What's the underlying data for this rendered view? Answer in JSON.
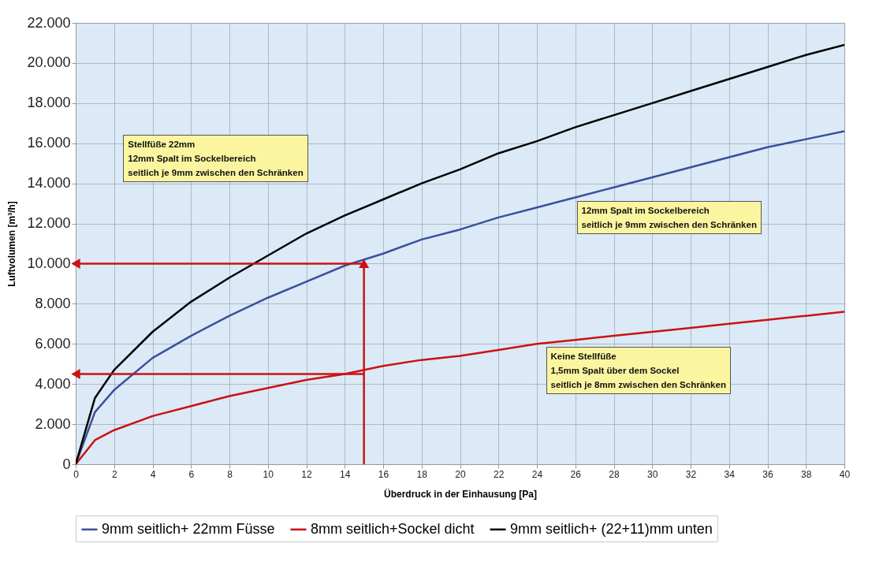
{
  "chart_data": {
    "type": "line",
    "xlabel": "Überdruck in der Einhausung [Pa]",
    "ylabel": "Luftvolumen [m³/h]",
    "x": [
      0,
      1,
      2,
      4,
      6,
      8,
      10,
      12,
      14,
      16,
      18,
      20,
      22,
      24,
      26,
      28,
      30,
      32,
      34,
      36,
      38,
      40
    ],
    "series": [
      {
        "name": "9mm seitlich+ 22mm Füsse",
        "color": "#3a4f9e",
        "values": [
          0,
          2600,
          3700,
          5300,
          6400,
          7400,
          8300,
          9100,
          9900,
          10500,
          11200,
          11700,
          12300,
          12800,
          13300,
          13800,
          14300,
          14800,
          15300,
          15800,
          16200,
          16600
        ]
      },
      {
        "name": "8mm seitlich+Sockel dicht",
        "color": "#cc1111",
        "values": [
          0,
          1200,
          1700,
          2400,
          2900,
          3400,
          3800,
          4200,
          4500,
          4900,
          5200,
          5400,
          5700,
          6000,
          6200,
          6400,
          6600,
          6800,
          7000,
          7200,
          7400,
          7600
        ]
      },
      {
        "name": "9mm seitlich+ (22+11)mm unten",
        "color": "#000000",
        "values": [
          0,
          3300,
          4700,
          6600,
          8100,
          9300,
          10400,
          11500,
          12400,
          13200,
          14000,
          14700,
          15500,
          16100,
          16800,
          17400,
          18000,
          18600,
          19200,
          19800,
          20400,
          20900
        ]
      }
    ],
    "xlim": [
      0,
      40
    ],
    "xticks": [
      0,
      2,
      4,
      6,
      8,
      10,
      12,
      14,
      16,
      18,
      20,
      22,
      24,
      26,
      28,
      30,
      32,
      34,
      36,
      38,
      40
    ],
    "ylim": [
      0,
      22000
    ],
    "yticks": [
      0,
      {
        "value": 2000,
        "label": "2.000"
      },
      {
        "value": 4000,
        "label": "4.000"
      },
      {
        "value": 6000,
        "label": "6.000"
      },
      {
        "value": 8000,
        "label": "8.000"
      },
      {
        "value": 10000,
        "label": "10.000"
      },
      {
        "value": 12000,
        "label": "12.000"
      },
      {
        "value": 14000,
        "label": "14.000"
      },
      {
        "value": 16000,
        "label": "16.000"
      },
      {
        "value": 18000,
        "label": "18.000"
      },
      {
        "value": 20000,
        "label": "20.000"
      },
      {
        "value": 22000,
        "label": "22.000"
      }
    ],
    "ref_lines": [
      {
        "axis": "y",
        "value": 10000,
        "color": "#cc1111"
      },
      {
        "axis": "y",
        "value": 4500,
        "color": "#cc1111"
      },
      {
        "axis": "x",
        "value": 15,
        "color": "#cc1111"
      }
    ],
    "annotations": [
      "Stellfüße 22mm\n12mm Spalt im Sockelbereich\nseitlich je 9mm zwischen den Schränken",
      "12mm Spalt im Sockelbereich\nseitlich je 9mm zwischen den Schränken",
      "Keine Stellfüße\n1,5mm Spalt über dem Sockel\nseitlich je 8mm zwischen den Schränken"
    ],
    "grid": true,
    "legend": "bottom"
  }
}
